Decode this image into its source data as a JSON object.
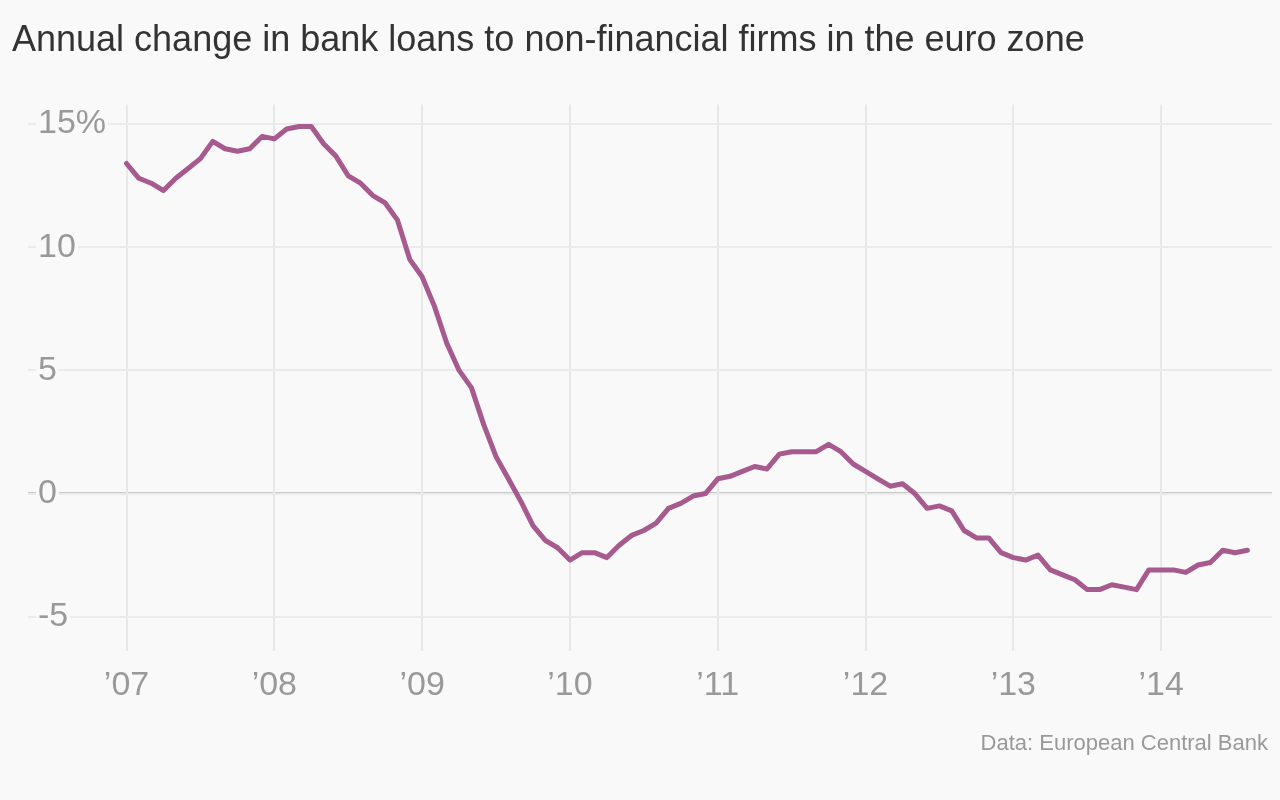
{
  "chart_data": {
    "type": "line",
    "title": "Annual change in bank loans to non-financial firms in the euro zone",
    "annotations": [
      "Data: European Central Bank"
    ],
    "x": [
      "2007-01",
      "2007-02",
      "2007-03",
      "2007-04",
      "2007-05",
      "2007-06",
      "2007-07",
      "2007-08",
      "2007-09",
      "2007-10",
      "2007-11",
      "2007-12",
      "2008-01",
      "2008-02",
      "2008-03",
      "2008-04",
      "2008-05",
      "2008-06",
      "2008-07",
      "2008-08",
      "2008-09",
      "2008-10",
      "2008-11",
      "2008-12",
      "2009-01",
      "2009-02",
      "2009-03",
      "2009-04",
      "2009-05",
      "2009-06",
      "2009-07",
      "2009-08",
      "2009-09",
      "2009-10",
      "2009-11",
      "2009-12",
      "2010-01",
      "2010-02",
      "2010-03",
      "2010-04",
      "2010-05",
      "2010-06",
      "2010-07",
      "2010-08",
      "2010-09",
      "2010-10",
      "2010-11",
      "2010-12",
      "2011-01",
      "2011-02",
      "2011-03",
      "2011-04",
      "2011-05",
      "2011-06",
      "2011-07",
      "2011-08",
      "2011-09",
      "2011-10",
      "2011-11",
      "2011-12",
      "2012-01",
      "2012-02",
      "2012-03",
      "2012-04",
      "2012-05",
      "2012-06",
      "2012-07",
      "2012-08",
      "2012-09",
      "2012-10",
      "2012-11",
      "2012-12",
      "2013-01",
      "2013-02",
      "2013-03",
      "2013-04",
      "2013-05",
      "2013-06",
      "2013-07",
      "2013-08",
      "2013-09",
      "2013-10",
      "2013-11",
      "2013-12",
      "2014-01",
      "2014-02",
      "2014-03",
      "2014-04",
      "2014-05",
      "2014-06",
      "2014-07",
      "2014-08"
    ],
    "series": [
      {
        "color": "#a65a8d",
        "values": [
          13.4,
          12.8,
          12.6,
          12.3,
          12.8,
          13.2,
          13.6,
          14.3,
          14.0,
          13.9,
          14.0,
          14.5,
          14.4,
          14.8,
          14.9,
          14.9,
          14.2,
          13.7,
          12.9,
          12.6,
          12.1,
          11.8,
          11.1,
          9.5,
          8.8,
          7.6,
          6.1,
          5.0,
          4.3,
          2.8,
          1.5,
          0.6,
          -0.3,
          -1.3,
          -1.9,
          -2.2,
          -2.7,
          -2.4,
          -2.4,
          -2.6,
          -2.1,
          -1.7,
          -1.5,
          -1.2,
          -0.6,
          -0.4,
          -0.1,
          0.0,
          0.6,
          0.7,
          0.9,
          1.1,
          1.0,
          1.6,
          1.7,
          1.7,
          1.7,
          2.0,
          1.7,
          1.2,
          0.9,
          0.6,
          0.3,
          0.4,
          0.0,
          -0.6,
          -0.5,
          -0.7,
          -1.5,
          -1.8,
          -1.8,
          -2.4,
          -2.6,
          -2.7,
          -2.5,
          -3.1,
          -3.3,
          -3.5,
          -3.9,
          -3.9,
          -3.7,
          -3.8,
          -3.9,
          -3.1,
          -3.1,
          -3.1,
          -3.2,
          -2.9,
          -2.8,
          -2.3,
          -2.4,
          -2.3
        ]
      }
    ],
    "xlim": [
      "2006-05",
      "2014-10"
    ],
    "xticks": [
      {
        "value": "2007-01",
        "label": "’07"
      },
      {
        "value": "2008-01",
        "label": "’08"
      },
      {
        "value": "2009-01",
        "label": "’09"
      },
      {
        "value": "2010-01",
        "label": "’10"
      },
      {
        "value": "2011-01",
        "label": "’11"
      },
      {
        "value": "2012-01",
        "label": "’12"
      },
      {
        "value": "2013-01",
        "label": "’13"
      },
      {
        "value": "2014-01",
        "label": "’14"
      }
    ],
    "ylim": [
      -6.4,
      15.8
    ],
    "yticks": [
      {
        "value": 15,
        "label": "15%"
      },
      10,
      5,
      0,
      -5
    ],
    "ref_lines": [
      {
        "axis": "y",
        "value": 0,
        "color": "#999999"
      }
    ],
    "grid": true,
    "legend": false,
    "marker": "none",
    "line_style": "solid"
  }
}
